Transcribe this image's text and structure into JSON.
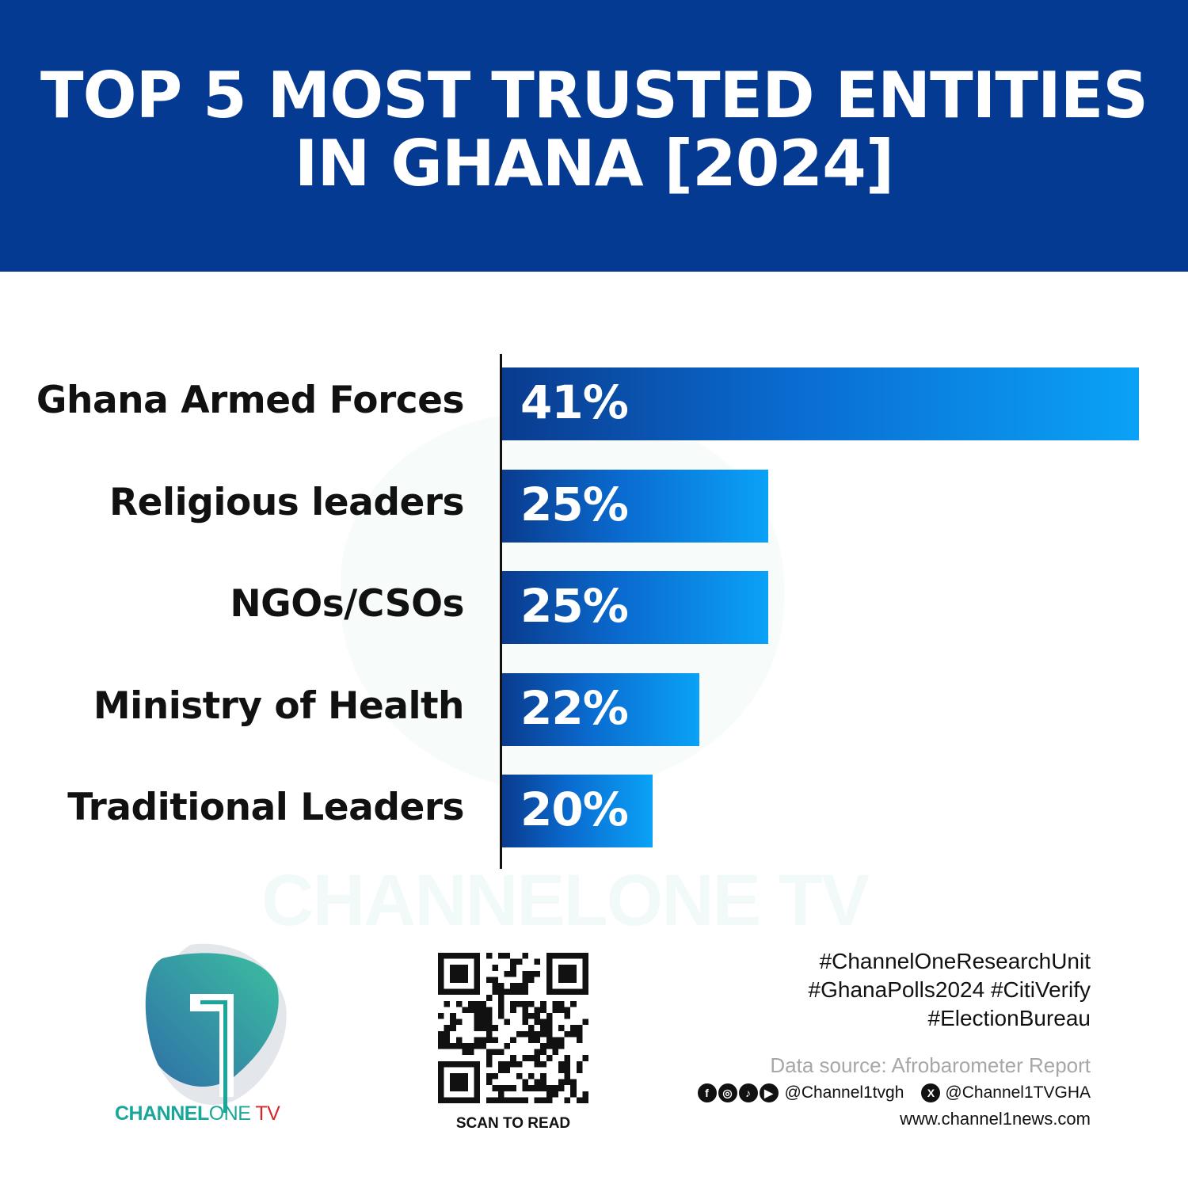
{
  "header": {
    "title_line1": "TOP 5 MOST TRUSTED ENTITIES",
    "title_line2": "IN GHANA [2024]",
    "bg_color": "#053a93"
  },
  "chart_data": {
    "type": "bar",
    "orientation": "horizontal",
    "title": "TOP 5 MOST TRUSTED ENTITIES IN GHANA [2024]",
    "categories": [
      "Ghana Armed Forces",
      "Religious leaders",
      "NGOs/CSOs",
      "Ministry of Health",
      "Traditional Leaders"
    ],
    "values": [
      41,
      25,
      25,
      22,
      20
    ],
    "labels": [
      "41%",
      "25%",
      "25%",
      "22%",
      "20%"
    ],
    "unit": "%",
    "xlim": [
      13.5,
      41
    ],
    "grid": false,
    "bar_gradient": [
      "#0a3b8e",
      "#0aa2f7"
    ]
  },
  "watermark": "CHANNELONE TV",
  "logo": {
    "part1": "CHANNEL",
    "part2": "ONE",
    "part3": "TV",
    "teal": "#1aa79a",
    "red": "#d4252b"
  },
  "qr": {
    "caption": "SCAN TO READ"
  },
  "footer": {
    "tags": [
      "#ChannelOneResearchUnit",
      "#GhanaPolls2024 #CitiVerify",
      "#ElectionBureau"
    ],
    "source": "Data source: Afrobarometer Report",
    "social_handle": "@Channel1tvgh",
    "x_handle": "@Channel1TVGHA",
    "website": "www.channel1news.com",
    "icons": [
      "facebook-icon",
      "instagram-icon",
      "tiktok-icon",
      "youtube-icon",
      "x-icon"
    ]
  }
}
